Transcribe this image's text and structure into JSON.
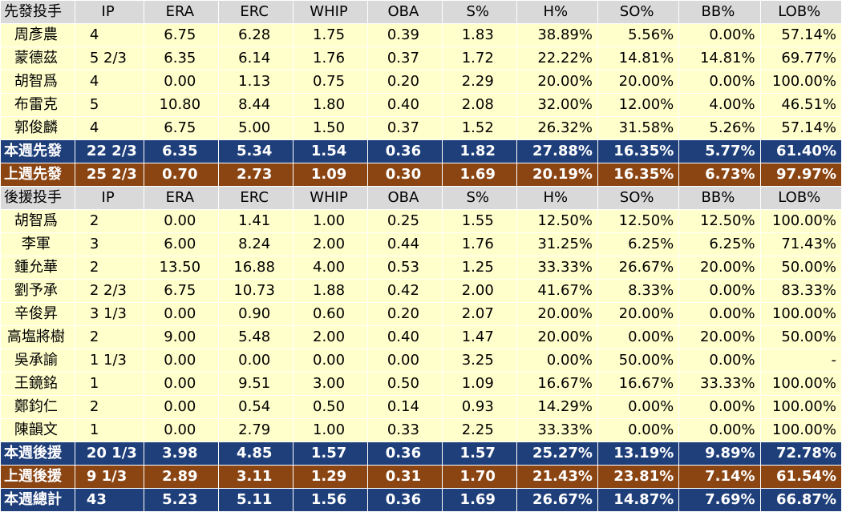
{
  "headers": {
    "starter": [
      "先發投手",
      "IP",
      "ERA",
      "ERC",
      "WHIP",
      "OBA",
      "S%",
      "H%",
      "SO%",
      "BB%",
      "LOB%"
    ],
    "reliever": [
      "後援投手",
      "IP",
      "ERA",
      "ERC",
      "WHIP",
      "OBA",
      "S%",
      "H%",
      "SO%",
      "BB%",
      "LOB%"
    ]
  },
  "starters": [
    [
      "周彥農",
      "4",
      "6.75",
      "6.28",
      "1.75",
      "0.39",
      "1.83",
      "38.89%",
      "5.56%",
      "0.00%",
      "57.14%"
    ],
    [
      "蒙德茲",
      "5 2/3",
      "6.35",
      "6.14",
      "1.76",
      "0.37",
      "1.72",
      "22.22%",
      "14.81%",
      "14.81%",
      "69.77%"
    ],
    [
      "胡智爲",
      "4",
      "0.00",
      "1.13",
      "0.75",
      "0.20",
      "2.29",
      "20.00%",
      "20.00%",
      "0.00%",
      "100.00%"
    ],
    [
      "布雷克",
      "5",
      "10.80",
      "8.44",
      "1.80",
      "0.40",
      "2.08",
      "32.00%",
      "12.00%",
      "4.00%",
      "46.51%"
    ],
    [
      "郭俊麟",
      "4",
      "6.75",
      "5.00",
      "1.50",
      "0.37",
      "1.52",
      "26.32%",
      "31.58%",
      "5.26%",
      "57.14%"
    ]
  ],
  "starter_totals": [
    {
      "style": "blue",
      "cells": [
        "本週先發",
        "22 2/3",
        "6.35",
        "5.34",
        "1.54",
        "0.36",
        "1.82",
        "27.88%",
        "16.35%",
        "5.77%",
        "61.40%"
      ]
    },
    {
      "style": "brown",
      "cells": [
        "上週先發",
        "25 2/3",
        "0.70",
        "2.73",
        "1.09",
        "0.30",
        "1.69",
        "20.19%",
        "16.35%",
        "6.73%",
        "97.97%"
      ]
    }
  ],
  "relievers": [
    [
      "胡智爲",
      "2",
      "0.00",
      "1.41",
      "1.00",
      "0.25",
      "1.55",
      "12.50%",
      "12.50%",
      "12.50%",
      "100.00%"
    ],
    [
      "李軍",
      "3",
      "6.00",
      "8.24",
      "2.00",
      "0.44",
      "1.76",
      "31.25%",
      "6.25%",
      "6.25%",
      "71.43%"
    ],
    [
      "鍾允華",
      "2",
      "13.50",
      "16.88",
      "4.00",
      "0.53",
      "1.25",
      "33.33%",
      "26.67%",
      "20.00%",
      "50.00%"
    ],
    [
      "劉予承",
      "2 2/3",
      "6.75",
      "10.73",
      "1.88",
      "0.42",
      "2.00",
      "41.67%",
      "8.33%",
      "0.00%",
      "83.33%"
    ],
    [
      "辛俊昇",
      "3 1/3",
      "0.00",
      "0.90",
      "0.60",
      "0.20",
      "2.07",
      "20.00%",
      "20.00%",
      "0.00%",
      "100.00%"
    ],
    [
      "高塩將樹",
      "2",
      "9.00",
      "5.48",
      "2.00",
      "0.40",
      "1.47",
      "20.00%",
      "0.00%",
      "20.00%",
      "50.00%"
    ],
    [
      "吳承諭",
      "1 1/3",
      "0.00",
      "0.00",
      "0.00",
      "0.00",
      "3.25",
      "0.00%",
      "50.00%",
      "0.00%",
      "-"
    ],
    [
      "王鏡銘",
      "1",
      "0.00",
      "9.51",
      "3.00",
      "0.50",
      "1.09",
      "16.67%",
      "16.67%",
      "33.33%",
      "100.00%"
    ],
    [
      "鄭鈞仁",
      "2",
      "0.00",
      "0.54",
      "0.50",
      "0.14",
      "0.93",
      "14.29%",
      "0.00%",
      "0.00%",
      "100.00%"
    ],
    [
      "陳韻文",
      "1",
      "0.00",
      "2.79",
      "1.00",
      "0.33",
      "2.25",
      "33.33%",
      "0.00%",
      "0.00%",
      "100.00%"
    ]
  ],
  "reliever_totals": [
    {
      "style": "blue",
      "cells": [
        "本週後援",
        "20 1/3",
        "3.98",
        "4.85",
        "1.57",
        "0.36",
        "1.57",
        "25.27%",
        "13.19%",
        "9.89%",
        "72.78%"
      ]
    },
    {
      "style": "brown",
      "cells": [
        "上週後援",
        "9 1/3",
        "2.89",
        "3.11",
        "1.29",
        "0.31",
        "1.70",
        "21.43%",
        "23.81%",
        "7.14%",
        "61.54%"
      ]
    },
    {
      "style": "blue",
      "cells": [
        "本週總計",
        "43",
        "5.23",
        "5.11",
        "1.56",
        "0.36",
        "1.69",
        "26.67%",
        "14.87%",
        "7.69%",
        "66.87%"
      ]
    }
  ]
}
